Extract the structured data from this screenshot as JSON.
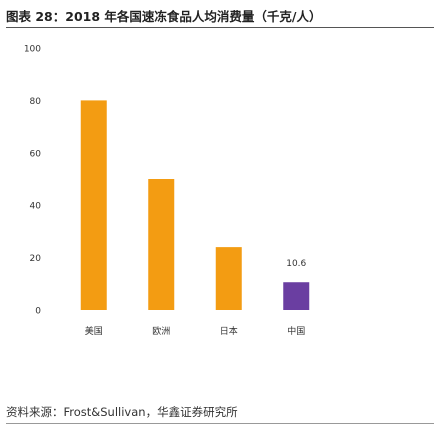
{
  "figure": {
    "title": "图表 28：2018 年各国速冻食品人均消费量（千克/人）",
    "source": "资料来源：Frost&Sullivan，华鑫证券研究所"
  },
  "chart_data": {
    "type": "bar",
    "categories": [
      "美国",
      "欧洲",
      "日本",
      "中国"
    ],
    "values": [
      80,
      50,
      24,
      10.6
    ],
    "bar_colors": [
      "#f39c12",
      "#f39c12",
      "#f39c12",
      "#6a3ea1"
    ],
    "data_labels": [
      "",
      "",
      "",
      "10.6"
    ],
    "yticks": [
      0,
      20,
      40,
      60,
      80,
      100
    ],
    "ylim": [
      0,
      100
    ],
    "title": "",
    "xlabel": "",
    "ylabel": "",
    "grid": false,
    "legend": "none"
  }
}
